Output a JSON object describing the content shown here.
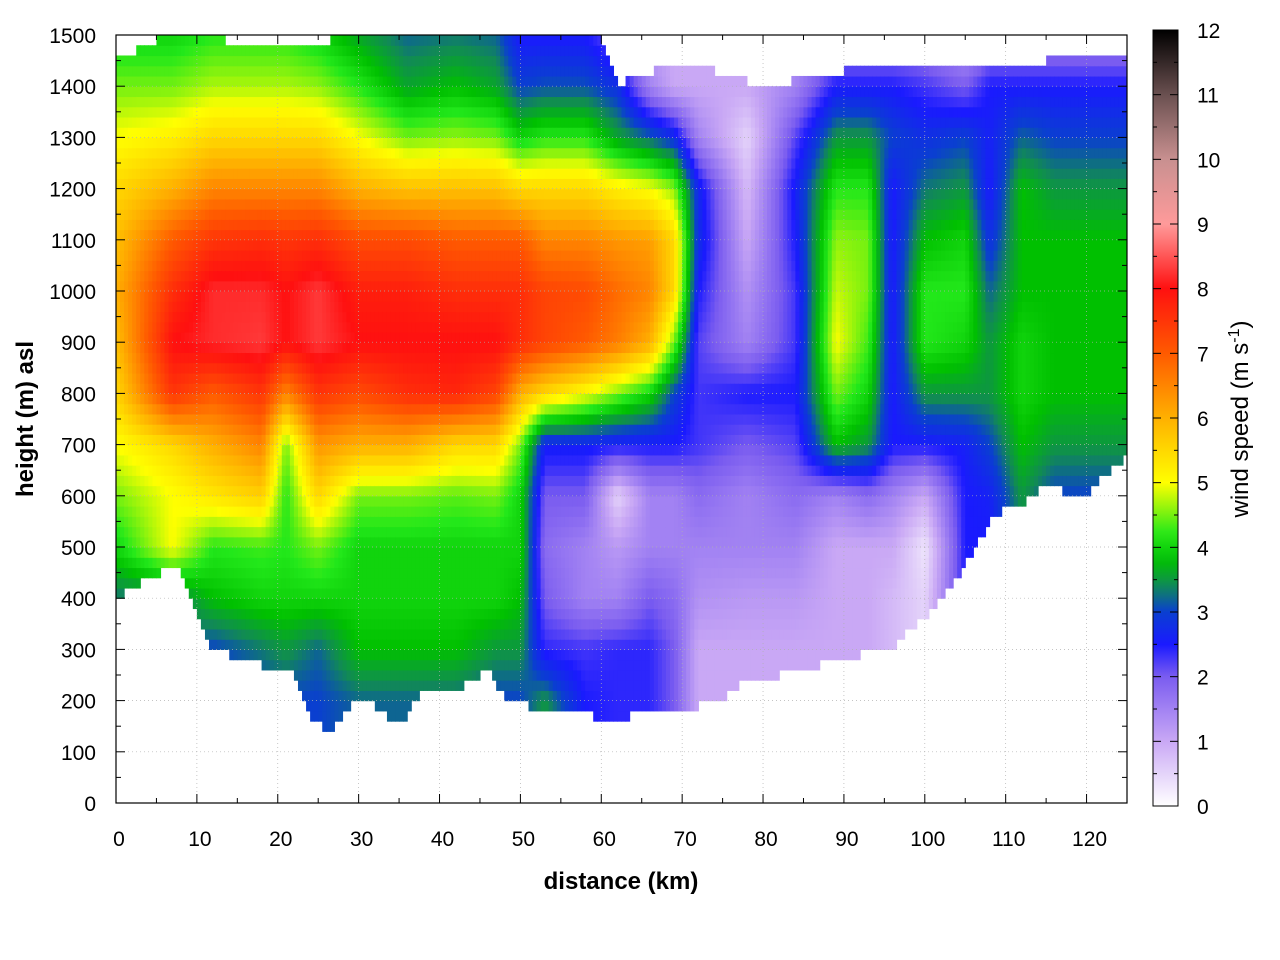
{
  "chart_data": {
    "type": "heatmap",
    "title": "",
    "xlabel": "distance (km)",
    "ylabel": "height (m) asl",
    "xlim": [
      0,
      125
    ],
    "ylim": [
      0,
      1500
    ],
    "x_ticks": [
      "0",
      "10",
      "20",
      "30",
      "40",
      "50",
      "60",
      "70",
      "80",
      "90",
      "100",
      "110",
      "120"
    ],
    "y_ticks": [
      "0",
      "100",
      "200",
      "300",
      "400",
      "500",
      "600",
      "700",
      "800",
      "900",
      "1000",
      "1100",
      "1200",
      "1300",
      "1400",
      "1500"
    ],
    "grid": true,
    "colorbar": {
      "label_main": "wind speed (m s",
      "label_sup": "-1",
      "label_end": ")",
      "range": [
        0,
        12
      ],
      "ticks": [
        "0",
        "1",
        "2",
        "3",
        "4",
        "5",
        "6",
        "7",
        "8",
        "9",
        "10",
        "11",
        "12"
      ],
      "palette": [
        [
          0,
          "#ffffff"
        ],
        [
          1,
          "#c9a8f5"
        ],
        [
          2,
          "#7a5cf0"
        ],
        [
          2.5,
          "#1a1aff"
        ],
        [
          3,
          "#0a3fd0"
        ],
        [
          3.4,
          "#118a55"
        ],
        [
          3.8,
          "#00c000"
        ],
        [
          4.2,
          "#22e81a"
        ],
        [
          5,
          "#ffff00"
        ],
        [
          6,
          "#ffb000"
        ],
        [
          7,
          "#ff5a00"
        ],
        [
          8,
          "#ff1010"
        ],
        [
          9,
          "#ff9a9a"
        ],
        [
          10,
          "#c89090"
        ],
        [
          11,
          "#6a5050"
        ],
        [
          12,
          "#000000"
        ]
      ]
    },
    "terrain_height_m": {
      "x": [
        0,
        2,
        4,
        6,
        7,
        8,
        9,
        10,
        11,
        12,
        14,
        16,
        18,
        20,
        22,
        24,
        25,
        26,
        27,
        28,
        30,
        32,
        34,
        35,
        36,
        38,
        40,
        42,
        44,
        46,
        48,
        50,
        52,
        54,
        56,
        58,
        60,
        62,
        63,
        64,
        66,
        68,
        70,
        72,
        74,
        76,
        78,
        80,
        82,
        84,
        86,
        88,
        90,
        92,
        94,
        96,
        98,
        100,
        102,
        104,
        106,
        108,
        110,
        112,
        114,
        116,
        118,
        120,
        122,
        124,
        125
      ],
      "height": [
        400,
        425,
        435,
        455,
        465,
        450,
        420,
        370,
        330,
        300,
        290,
        285,
        270,
        250,
        255,
        175,
        155,
        140,
        150,
        175,
        205,
        190,
        160,
        150,
        175,
        230,
        230,
        215,
        240,
        265,
        205,
        195,
        185,
        175,
        180,
        175,
        165,
        150,
        165,
        175,
        180,
        180,
        185,
        190,
        200,
        215,
        240,
        240,
        250,
        255,
        265,
        275,
        285,
        290,
        310,
        305,
        340,
        360,
        405,
        440,
        490,
        550,
        575,
        585,
        610,
        620,
        600,
        595,
        640,
        665,
        685
      ]
    },
    "data_top_height_m": {
      "x": [
        0,
        5,
        10,
        20,
        30,
        40,
        50,
        60,
        62,
        70,
        80,
        90,
        100,
        110,
        120,
        125
      ],
      "height": [
        1450,
        1490,
        1495,
        1480,
        1495,
        1495,
        1495,
        1490,
        1405,
        1450,
        1400,
        1430,
        1440,
        1430,
        1470,
        1460
      ]
    },
    "wind_speed_m_s": {
      "heights_m": [
        1500,
        1400,
        1300,
        1200,
        1100,
        1000,
        900,
        800,
        700,
        600,
        500,
        400,
        300,
        200
      ],
      "columns": [
        {
          "x": 0,
          "speed": [
            4,
            4.5,
            5,
            5.5,
            5.8,
            6,
            5.8,
            5.5,
            5,
            4.5,
            4,
            3.3,
            3.3,
            3.3
          ]
        },
        {
          "x": 7,
          "speed": [
            4,
            4.5,
            5.2,
            6,
            7,
            7.6,
            8,
            7.5,
            5.5,
            5,
            5,
            3.3,
            3.3,
            3.3
          ]
        },
        {
          "x": 12,
          "speed": [
            4.2,
            4.7,
            5.5,
            6.5,
            7.5,
            8.2,
            8.2,
            7,
            6,
            5.3,
            4.2,
            3.8,
            3,
            3
          ]
        },
        {
          "x": 18,
          "speed": [
            4.2,
            4.7,
            5.5,
            6.5,
            7.6,
            8.2,
            8.3,
            7.5,
            6.5,
            5.6,
            4.3,
            4,
            3.3,
            3
          ]
        },
        {
          "x": 21,
          "speed": [
            4.2,
            4.7,
            5.5,
            6.5,
            7.5,
            8,
            8,
            6.5,
            4.5,
            4.2,
            4.2,
            4,
            3.5,
            3
          ]
        },
        {
          "x": 25,
          "speed": [
            4,
            4.6,
            5.5,
            6.5,
            7.6,
            8.3,
            8.3,
            7.5,
            6.3,
            5.5,
            4.5,
            4,
            3.2,
            3
          ]
        },
        {
          "x": 30,
          "speed": [
            3.6,
            4.2,
            5,
            6,
            7.2,
            7.8,
            8,
            7.2,
            6,
            4.5,
            4,
            4,
            3.8,
            3.2
          ]
        },
        {
          "x": 36,
          "speed": [
            3.2,
            3.6,
            4.5,
            5.8,
            7.2,
            7.8,
            8,
            7.6,
            6,
            4.5,
            4,
            4,
            3.8,
            3.2
          ]
        },
        {
          "x": 42,
          "speed": [
            3.3,
            3.8,
            4.6,
            5.8,
            7,
            7.6,
            8,
            7.7,
            5.5,
            4.4,
            4,
            4,
            3.8,
            3.2
          ]
        },
        {
          "x": 47,
          "speed": [
            3.2,
            3.6,
            4.5,
            5.8,
            7,
            7.6,
            8,
            7.3,
            5.5,
            4.5,
            4,
            4,
            3.5,
            3
          ]
        },
        {
          "x": 50,
          "speed": [
            2.5,
            3,
            4,
            5.5,
            7,
            7.6,
            7.6,
            6,
            4.5,
            4,
            4,
            3.8,
            3.5,
            3
          ]
        },
        {
          "x": 53,
          "speed": [
            2.5,
            3.1,
            4.2,
            5.5,
            6.5,
            7.3,
            7.3,
            5.5,
            2.6,
            2,
            1.8,
            2,
            2.4,
            3.5
          ]
        },
        {
          "x": 58,
          "speed": [
            2.5,
            3.1,
            4.2,
            5.5,
            6.5,
            7.2,
            7,
            5,
            2.6,
            2,
            1.5,
            1.5,
            2.3,
            2.5
          ]
        },
        {
          "x": 62,
          "speed": [
            2,
            2.8,
            3.6,
            5.2,
            6.3,
            6.8,
            6.6,
            4.5,
            2.5,
            0.5,
            1.2,
            1.5,
            2.4,
            2.4
          ]
        },
        {
          "x": 66,
          "speed": [
            1,
            1.5,
            3.2,
            5,
            6.2,
            6.5,
            6,
            4,
            2.5,
            1.5,
            1.5,
            2,
            2.4,
            2.4
          ]
        },
        {
          "x": 69,
          "speed": [
            1,
            1,
            2.8,
            4.6,
            5.5,
            5.5,
            4.5,
            3,
            2.5,
            1.5,
            1.5,
            1.8,
            2,
            2
          ]
        },
        {
          "x": 72,
          "speed": [
            1,
            1,
            1.5,
            2.7,
            2.8,
            2.5,
            2.2,
            2.3,
            2.3,
            1.8,
            1.5,
            1.3,
            1,
            1
          ]
        },
        {
          "x": 78,
          "speed": [
            1,
            1,
            0.5,
            0.8,
            1,
            1.3,
            1.5,
            2.5,
            2,
            1.5,
            1.5,
            1.2,
            1,
            1
          ]
        },
        {
          "x": 84,
          "speed": [
            1,
            1.5,
            2.2,
            2.6,
            2.5,
            2.3,
            2.3,
            2.5,
            2.2,
            1.8,
            1.5,
            1.2,
            1,
            1
          ]
        },
        {
          "x": 89,
          "speed": [
            1.5,
            2.5,
            3.5,
            4.2,
            4.6,
            4.8,
            5,
            4.5,
            3.8,
            1.5,
            1,
            1,
            1,
            1
          ]
        },
        {
          "x": 93,
          "speed": [
            1.5,
            2.5,
            3.5,
            4.2,
            4.5,
            4.5,
            4.3,
            4,
            3.5,
            1.8,
            1,
            1,
            1,
            1
          ]
        },
        {
          "x": 96,
          "speed": [
            1.5,
            2.5,
            3,
            2.5,
            2.5,
            2.5,
            2.5,
            2.5,
            2.5,
            1.5,
            1,
            0.8,
            0.8,
            0.8
          ]
        },
        {
          "x": 100,
          "speed": [
            1.5,
            2.3,
            2.8,
            3.3,
            3.8,
            4.2,
            4.2,
            3.5,
            2.5,
            1,
            0.3,
            0.5,
            0.5,
            0.5
          ]
        },
        {
          "x": 105,
          "speed": [
            1,
            2,
            3,
            3.5,
            4,
            4.2,
            4,
            3.5,
            2.6,
            2.5,
            2.5,
            2.5,
            2.5,
            2.5
          ]
        },
        {
          "x": 108,
          "speed": [
            1.5,
            2.5,
            2.6,
            2.5,
            2.8,
            3.2,
            3.5,
            3.5,
            3,
            2.6,
            2.5,
            2.5,
            2.5,
            2.5
          ]
        },
        {
          "x": 112,
          "speed": [
            1.5,
            2.5,
            3.2,
            3.8,
            3.8,
            3.8,
            4,
            4,
            3.8,
            3.5,
            3.5,
            3.5,
            3.5,
            3.5
          ]
        },
        {
          "x": 116,
          "speed": [
            1.5,
            2.5,
            3,
            3.5,
            3.8,
            3.8,
            3.8,
            3.8,
            3.5,
            3,
            3,
            3,
            3,
            3
          ]
        },
        {
          "x": 120,
          "speed": [
            1.5,
            2.5,
            3,
            3.5,
            3.8,
            3.8,
            3.8,
            3.8,
            3.5,
            3,
            3,
            3,
            3,
            3
          ]
        },
        {
          "x": 125,
          "speed": [
            1.5,
            2.5,
            3,
            3.5,
            3.8,
            3.8,
            3.8,
            3.8,
            3.5,
            3,
            3,
            3,
            3,
            3
          ]
        }
      ]
    }
  }
}
